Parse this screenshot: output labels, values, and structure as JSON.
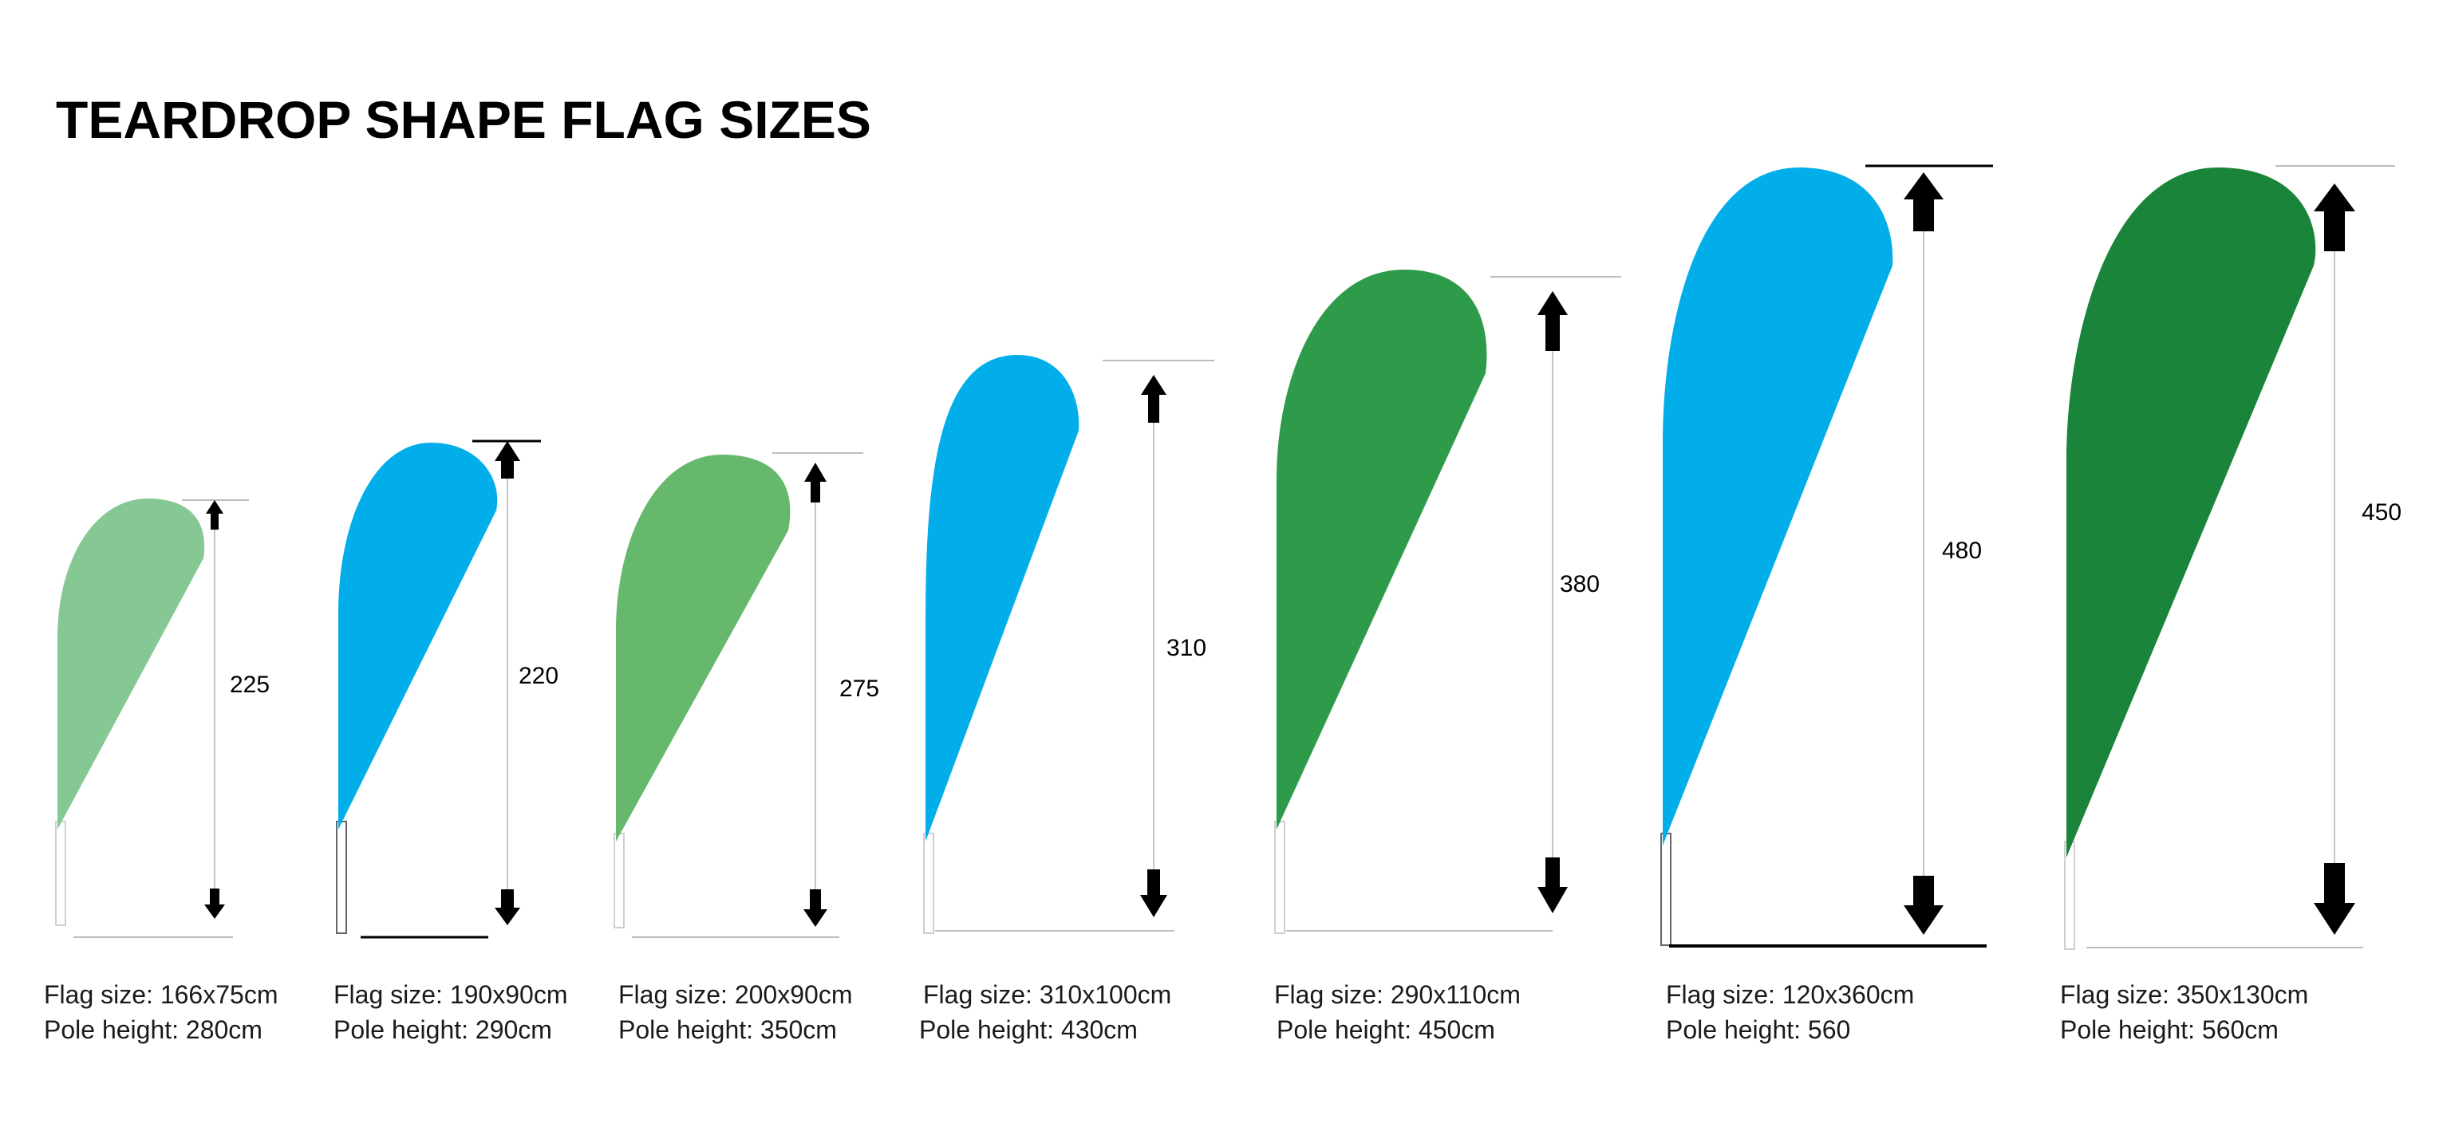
{
  "title": "TEARDROP SHAPE FLAG SIZES",
  "flags": [
    {
      "color": "#86c893",
      "height_label": "225",
      "flag_size": "Flag size: 166x75cm",
      "pole_height": "Pole height: 280cm"
    },
    {
      "color": "#02aeea",
      "height_label": "220",
      "flag_size": "Flag size: 190x90cm",
      "pole_height": "Pole height: 290cm"
    },
    {
      "color": "#66b86d",
      "height_label": "275",
      "flag_size": "Flag size: 200x90cm",
      "pole_height": "Pole height: 350cm"
    },
    {
      "color": "#02aeea",
      "height_label": "310",
      "flag_size": "Flag size: 310x100cm",
      "pole_height": "Pole height: 430cm"
    },
    {
      "color": "#2e9b4b",
      "height_label": "380",
      "flag_size": "Flag size: 290x110cm",
      "pole_height": "Pole height: 450cm"
    },
    {
      "color": "#02aeea",
      "height_label": "480",
      "flag_size": "Flag size: 120x360cm",
      "pole_height": "Pole height: 560"
    },
    {
      "color": "#1a853a",
      "height_label": "450",
      "flag_size": "Flag size: 350x130cm",
      "pole_height": "Pole height: 560cm"
    }
  ]
}
